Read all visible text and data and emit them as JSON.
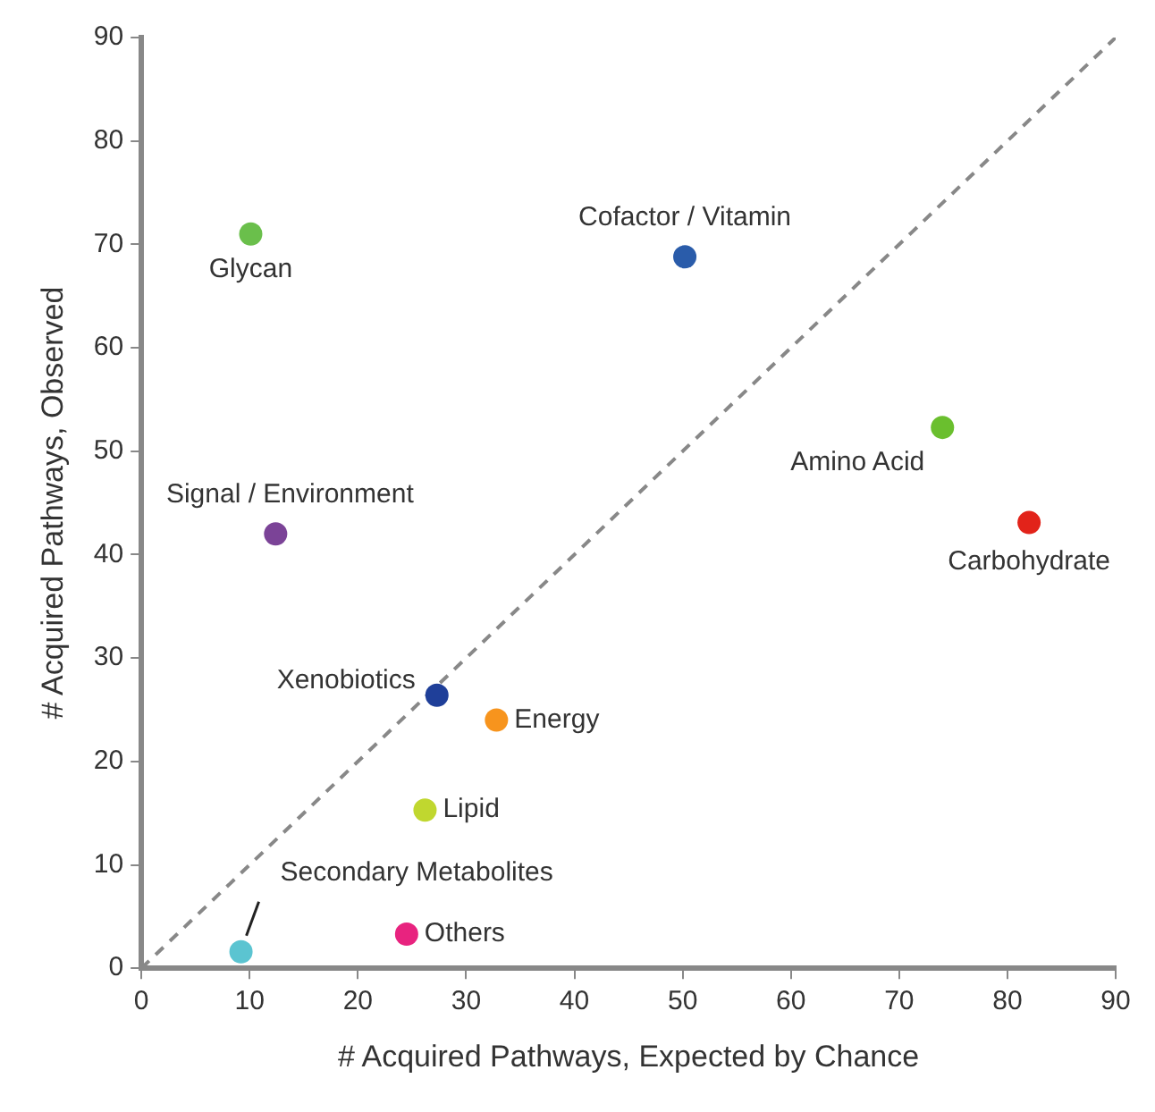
{
  "chart_data": {
    "type": "scatter",
    "xlabel": "# Acquired Pathways, Expected by Chance",
    "ylabel": "# Acquired Pathways, Observed",
    "xlim": [
      0,
      90
    ],
    "xticks": [
      0,
      10,
      20,
      30,
      40,
      50,
      60,
      70,
      80,
      90
    ],
    "ylim": [
      0,
      90
    ],
    "yticks": [
      0,
      10,
      20,
      30,
      40,
      50,
      60,
      70,
      80,
      90
    ],
    "grid": false,
    "legend": false,
    "marker": "circle",
    "series": [
      {
        "type": "scatter",
        "x": [
          10.1,
          50.2,
          74.0,
          82.0,
          12.4,
          27.3,
          32.8,
          26.2,
          24.5,
          9.2
        ],
        "values": [
          71.0,
          68.8,
          52.3,
          43.1,
          42.0,
          26.4,
          24.0,
          15.3,
          3.3,
          1.6
        ],
        "colors": [
          "#6abf4b",
          "#2a5caa",
          "#6abf2e",
          "#e2231a",
          "#7b4397",
          "#1f3f99",
          "#f7941d",
          "#c0d72f",
          "#e8237f",
          "#5bc4d1"
        ]
      },
      {
        "type": "line",
        "x": [
          0,
          90
        ],
        "values": [
          0,
          90
        ],
        "color": "#888888",
        "line_style": "dashed",
        "marker": "none"
      }
    ],
    "annotations": [
      {
        "text": "Glycan",
        "x": 10.1,
        "y": 71.0
      },
      {
        "text": "Cofactor / Vitamin",
        "x": 50.2,
        "y": 68.8
      },
      {
        "text": "Amino Acid",
        "x": 74.0,
        "y": 52.3
      },
      {
        "text": "Carbohydrate",
        "x": 82.0,
        "y": 43.1
      },
      {
        "text": "Signal / Environment",
        "x": 12.4,
        "y": 42.0
      },
      {
        "text": "Xenobiotics",
        "x": 27.3,
        "y": 26.4
      },
      {
        "text": "Energy",
        "x": 32.8,
        "y": 24.0
      },
      {
        "text": "Lipid",
        "x": 26.2,
        "y": 15.3
      },
      {
        "text": "Others",
        "x": 24.5,
        "y": 3.3
      },
      {
        "text": "Secondary Metabolites",
        "x": 9.2,
        "y": 1.6
      }
    ]
  }
}
